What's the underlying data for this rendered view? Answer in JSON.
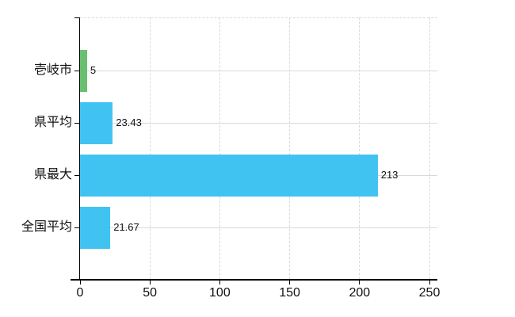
{
  "chart_data": {
    "type": "bar",
    "orientation": "horizontal",
    "title": "",
    "legend": "none",
    "grid": "on",
    "categories": [
      "壱岐市",
      "県平均",
      "県最大",
      "全国平均"
    ],
    "series": [
      {
        "name": "",
        "values": [
          5,
          23.43,
          213,
          21.67
        ]
      }
    ],
    "value_labels": [
      "5",
      "23.43",
      "213",
      "21.67"
    ],
    "bar_colors": [
      "#69bf70",
      "#41c3f2",
      "#41c3f2",
      "#41c3f2"
    ],
    "xlim": [
      0,
      250
    ],
    "x_tick_values": [
      0,
      50,
      100,
      150,
      200,
      250
    ],
    "x_tick_labels": [
      "0",
      "50",
      "100",
      "150",
      "200",
      "250"
    ],
    "colors": {
      "bar_blue": "#41c3f2",
      "bar_green": "#69bf70",
      "axis": "#000000",
      "grid": "#d9d9d9",
      "text": "#111111",
      "background": "#ffffff"
    }
  }
}
